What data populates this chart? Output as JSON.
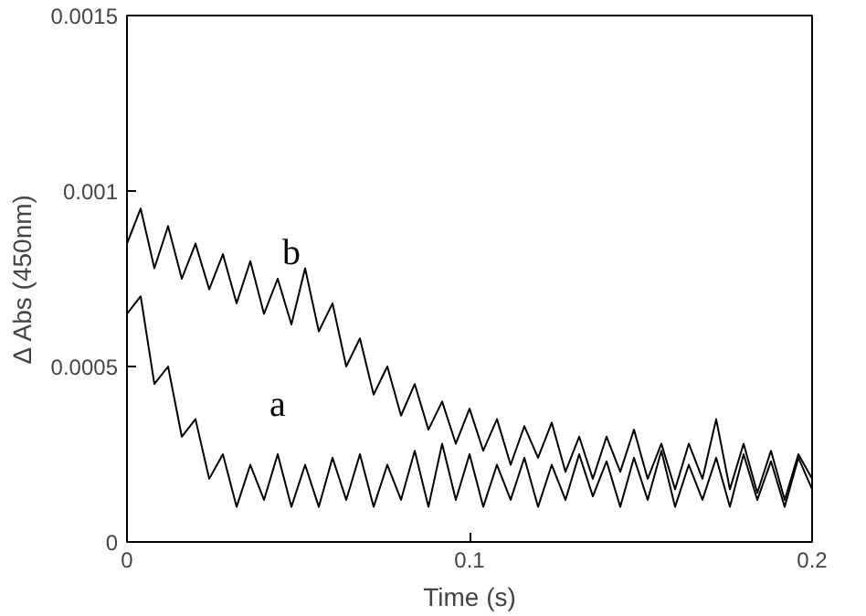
{
  "chart_data": {
    "type": "line",
    "xlabel": "Time (s)",
    "ylabel": "Δ Abs (450nm)",
    "x": [
      0,
      0.004,
      0.008,
      0.012,
      0.016,
      0.02,
      0.024,
      0.028,
      0.032,
      0.036,
      0.04,
      0.044,
      0.048,
      0.052,
      0.056,
      0.06,
      0.064,
      0.068,
      0.072,
      0.076,
      0.08,
      0.084,
      0.088,
      0.092,
      0.096,
      0.1,
      0.104,
      0.108,
      0.112,
      0.116,
      0.12,
      0.124,
      0.128,
      0.132,
      0.136,
      0.14,
      0.144,
      0.148,
      0.152,
      0.156,
      0.16,
      0.164,
      0.168,
      0.172,
      0.176,
      0.18,
      0.184,
      0.188,
      0.192,
      0.196,
      0.2
    ],
    "series": [
      {
        "name": "b",
        "color": "#000000",
        "values": [
          0.00085,
          0.00095,
          0.00078,
          0.0009,
          0.00075,
          0.00085,
          0.00072,
          0.00082,
          0.00068,
          0.0008,
          0.00065,
          0.00075,
          0.00062,
          0.00078,
          0.0006,
          0.00068,
          0.0005,
          0.00058,
          0.00042,
          0.0005,
          0.00036,
          0.00045,
          0.00032,
          0.0004,
          0.00028,
          0.00038,
          0.00026,
          0.00035,
          0.00022,
          0.00033,
          0.00024,
          0.00034,
          0.0002,
          0.0003,
          0.00018,
          0.0003,
          0.0002,
          0.00032,
          0.00018,
          0.00028,
          0.00015,
          0.00028,
          0.00018,
          0.00035,
          0.00015,
          0.00028,
          0.00014,
          0.00026,
          0.00012,
          0.00025,
          0.00018
        ]
      },
      {
        "name": "a",
        "color": "#000000",
        "values": [
          0.00065,
          0.0007,
          0.00045,
          0.0005,
          0.0003,
          0.00035,
          0.00018,
          0.00025,
          0.0001,
          0.00022,
          0.00012,
          0.00025,
          0.0001,
          0.00022,
          0.0001,
          0.00024,
          0.00012,
          0.00025,
          0.0001,
          0.00022,
          0.00012,
          0.00026,
          0.0001,
          0.00028,
          0.00012,
          0.00025,
          0.0001,
          0.00022,
          0.00012,
          0.00024,
          0.0001,
          0.00022,
          0.00012,
          0.00025,
          0.00013,
          0.00023,
          0.0001,
          0.00024,
          0.00012,
          0.00026,
          0.0001,
          0.00022,
          0.00012,
          0.00024,
          0.0001,
          0.00025,
          0.00012,
          0.00023,
          0.0001,
          0.00024,
          0.00015
        ]
      }
    ],
    "xlim": [
      0,
      0.2
    ],
    "xticks": [
      0,
      0.1,
      0.2
    ],
    "ylim": [
      0,
      0.0015
    ],
    "yticks": [
      0,
      0.0005,
      0.001,
      0.0015
    ],
    "grid": false
  }
}
